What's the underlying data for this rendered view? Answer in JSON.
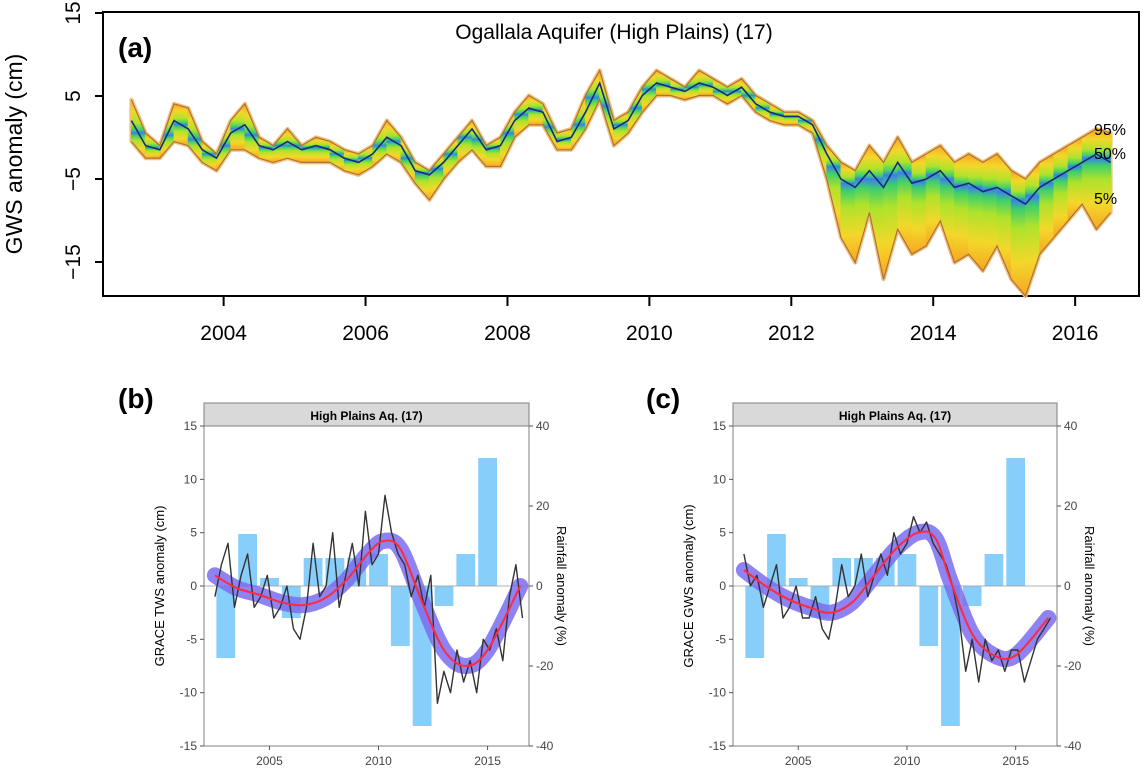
{
  "chart_data": [
    {
      "panel_label": "(a)",
      "type": "area",
      "title": "Ogallala Aquifer (High Plains) (17)",
      "ylabel": "GWS anomaly (cm)",
      "xlabel": "",
      "xlim": [
        2002.3,
        2016.9
      ],
      "ylim": [
        -19,
        15
      ],
      "xticks": [
        2004,
        2006,
        2008,
        2010,
        2012,
        2014,
        2016
      ],
      "xtick_labels": [
        "2004",
        "2006",
        "2008",
        "2010",
        "2012",
        "2014",
        "2016"
      ],
      "yticks": [
        15,
        5,
        -5,
        -15
      ],
      "ytick_labels": [
        "15",
        "5",
        "−5",
        "−15"
      ],
      "percentile_labels": [
        "95%",
        "50%",
        "5%"
      ],
      "x": [
        2002.7,
        2002.9,
        2003.1,
        2003.3,
        2003.5,
        2003.7,
        2003.9,
        2004.1,
        2004.3,
        2004.5,
        2004.7,
        2004.9,
        2005.1,
        2005.3,
        2005.5,
        2005.7,
        2005.9,
        2006.1,
        2006.3,
        2006.5,
        2006.7,
        2006.9,
        2007.1,
        2007.3,
        2007.5,
        2007.7,
        2007.9,
        2008.1,
        2008.3,
        2008.5,
        2008.7,
        2008.9,
        2009.1,
        2009.3,
        2009.5,
        2009.7,
        2009.9,
        2010.1,
        2010.3,
        2010.5,
        2010.7,
        2010.9,
        2011.1,
        2011.3,
        2011.5,
        2011.7,
        2011.9,
        2012.1,
        2012.3,
        2012.5,
        2012.7,
        2012.9,
        2013.1,
        2013.3,
        2013.5,
        2013.7,
        2013.9,
        2014.1,
        2014.3,
        2014.5,
        2014.7,
        2014.9,
        2015.1,
        2015.3,
        2015.5,
        2015.7,
        2015.9,
        2016.1,
        2016.3,
        2016.5
      ],
      "series": [
        {
          "name": "95%",
          "values": [
            4.5,
            0.5,
            -1,
            4,
            3.5,
            -0.5,
            -2,
            2,
            4,
            0,
            -1,
            1,
            -1,
            0,
            -0.5,
            -1.5,
            -2,
            -1,
            2,
            0,
            -3,
            -4,
            -2,
            0,
            2,
            -1,
            0,
            3,
            5,
            4,
            0.5,
            1,
            5,
            8,
            2,
            3,
            6,
            8,
            7,
            6,
            8,
            7,
            6,
            7,
            5,
            4,
            3,
            3,
            2,
            -1,
            -3,
            -4,
            -1,
            -3,
            0,
            -3,
            -2,
            -1,
            -3,
            -2,
            -3,
            -2,
            -4,
            -5,
            -3,
            -2,
            -1,
            0,
            1,
            0.5
          ]
        },
        {
          "name": "50%",
          "values": [
            2,
            -1,
            -1.5,
            2,
            1,
            -1.5,
            -2.5,
            0.5,
            1.5,
            -1,
            -1.5,
            -0.5,
            -1.5,
            -1,
            -1.5,
            -2.5,
            -3,
            -2,
            0,
            -1,
            -4,
            -4.5,
            -3,
            -1,
            1,
            -1.5,
            -1,
            2,
            3.5,
            3,
            -0.5,
            0,
            3,
            6.5,
            1,
            2,
            5,
            6.5,
            6,
            5.5,
            6.5,
            6,
            5,
            6,
            4,
            3,
            2.5,
            2.5,
            1.5,
            -2,
            -5,
            -6,
            -4,
            -6,
            -3,
            -5.5,
            -5,
            -4,
            -6,
            -5.5,
            -6.5,
            -6,
            -7,
            -8,
            -6,
            -5,
            -4,
            -3,
            -2,
            -3
          ]
        },
        {
          "name": "5%",
          "values": [
            -0.5,
            -2.5,
            -2.5,
            -0.5,
            -1,
            -3,
            -4,
            -1.5,
            -1.5,
            -2.5,
            -3,
            -2.5,
            -3,
            -3,
            -3,
            -4,
            -4.5,
            -3.5,
            -2,
            -3,
            -5.5,
            -7.5,
            -5,
            -3,
            -1.5,
            -3.5,
            -3.5,
            0,
            1.5,
            1.5,
            -1.5,
            -1.5,
            1,
            4.5,
            -1,
            0.5,
            3,
            5,
            5,
            4.5,
            5,
            5,
            4,
            5,
            3,
            2,
            1.5,
            1.5,
            0.5,
            -5,
            -12,
            -15,
            -9,
            -17,
            -11,
            -14,
            -13,
            -10,
            -15,
            -14,
            -16,
            -13,
            -17,
            -19,
            -14,
            -12,
            -10,
            -8,
            -11,
            -9
          ]
        }
      ]
    },
    {
      "panel_label": "(b)",
      "type": "line",
      "strip_title": "High Plains Aq. (17)",
      "ylabel": "GRACE TWS anomaly (cm)",
      "y2label": "Rainfall anomaly (%)",
      "xlim": [
        2002.0,
        2016.9
      ],
      "ylim": [
        -15,
        15
      ],
      "y2lim": [
        -40,
        40
      ],
      "xticks": [
        2005,
        2010,
        2015
      ],
      "xtick_labels": [
        "2005",
        "2010",
        "2015"
      ],
      "yticks": [
        -15,
        -10,
        -5,
        0,
        5,
        10,
        15
      ],
      "ytick_labels": [
        "-15",
        "-10",
        "-5",
        "0",
        "5",
        "10",
        "15"
      ],
      "y2ticks": [
        -40,
        -20,
        0,
        20,
        40
      ],
      "y2tick_labels": [
        "-40",
        "-20",
        "0",
        "20",
        "40"
      ],
      "rainfall_bars": {
        "years": [
          2003,
          2004,
          2005,
          2006,
          2007,
          2008,
          2009,
          2010,
          2011,
          2012,
          2013,
          2014,
          2015
        ],
        "values": [
          -18,
          13,
          2,
          -8,
          7,
          7,
          7,
          8,
          -15,
          -35,
          -5,
          8,
          32
        ]
      },
      "trend": {
        "name": "smoothed trend",
        "x": [
          2002.5,
          2003.5,
          2004.5,
          2005.5,
          2006.5,
          2007.5,
          2008.5,
          2009.5,
          2010.2,
          2011,
          2012,
          2013,
          2014,
          2015,
          2016.5
        ],
        "values": [
          1,
          -0.2,
          -0.8,
          -1.5,
          -1.8,
          -1.2,
          0.5,
          3,
          4.2,
          3.5,
          -1.5,
          -6,
          -7.5,
          -6,
          0
        ]
      },
      "observed": {
        "name": "GRACE TWS",
        "x": [
          2002.5,
          2002.8,
          2003.1,
          2003.4,
          2003.7,
          2004,
          2004.3,
          2004.6,
          2004.9,
          2005.2,
          2005.5,
          2005.8,
          2006.1,
          2006.4,
          2006.7,
          2007,
          2007.3,
          2007.6,
          2007.9,
          2008.2,
          2008.5,
          2008.8,
          2009.1,
          2009.4,
          2009.7,
          2010,
          2010.3,
          2010.6,
          2010.9,
          2011.2,
          2011.5,
          2011.8,
          2012.1,
          2012.4,
          2012.7,
          2013,
          2013.3,
          2013.6,
          2013.9,
          2014.2,
          2014.5,
          2014.8,
          2015.1,
          2015.4,
          2015.7,
          2016,
          2016.3,
          2016.6
        ],
        "values": [
          -1,
          2,
          4,
          -2,
          1,
          3,
          -2,
          -1,
          1,
          -3,
          -2,
          0,
          -4,
          -5,
          -2,
          4,
          -1,
          0,
          5,
          -2,
          1,
          4,
          0,
          7,
          2,
          3,
          8.5,
          5,
          3,
          2,
          -1,
          1,
          -2,
          1,
          -11,
          -8,
          -10,
          -6,
          -9,
          -7,
          -10,
          -5,
          -6,
          -4,
          -7,
          -1,
          2,
          -3
        ]
      }
    },
    {
      "panel_label": "(c)",
      "type": "line",
      "strip_title": "High Plains Aq. (17)",
      "ylabel": "GRACE GWS anomaly (cm)",
      "y2label": "Rainfall anomaly (%)",
      "xlim": [
        2002.0,
        2016.9
      ],
      "ylim": [
        -15,
        15
      ],
      "y2lim": [
        -40,
        40
      ],
      "xticks": [
        2005,
        2010,
        2015
      ],
      "xtick_labels": [
        "2005",
        "2010",
        "2015"
      ],
      "yticks": [
        -15,
        -10,
        -5,
        0,
        5,
        10,
        15
      ],
      "ytick_labels": [
        "-15",
        "-10",
        "-5",
        "0",
        "5",
        "10",
        "15"
      ],
      "y2ticks": [
        -40,
        -20,
        0,
        20,
        40
      ],
      "y2tick_labels": [
        "-40",
        "-20",
        "0",
        "20",
        "40"
      ],
      "rainfall_bars": {
        "years": [
          2003,
          2004,
          2005,
          2006,
          2007,
          2008,
          2009,
          2010,
          2011,
          2012,
          2013,
          2014,
          2015
        ],
        "values": [
          -18,
          13,
          2,
          -8,
          7,
          7,
          7,
          8,
          -15,
          -35,
          -5,
          8,
          32
        ]
      },
      "trend": {
        "name": "smoothed trend",
        "x": [
          2002.5,
          2003.5,
          2004.5,
          2005.5,
          2006.5,
          2007.5,
          2008.5,
          2009.5,
          2010.5,
          2011.3,
          2012,
          2013,
          2014,
          2015,
          2016.5
        ],
        "values": [
          1.5,
          0,
          -1.2,
          -2,
          -2.5,
          -1.5,
          1,
          3.5,
          5,
          4.5,
          0.5,
          -4.5,
          -6.5,
          -6.5,
          -3
        ]
      },
      "observed": {
        "name": "GRACE GWS",
        "x": [
          2002.5,
          2002.8,
          2003.1,
          2003.4,
          2003.7,
          2004,
          2004.3,
          2004.6,
          2004.9,
          2005.2,
          2005.5,
          2005.8,
          2006.1,
          2006.4,
          2006.7,
          2007,
          2007.3,
          2007.6,
          2007.9,
          2008.2,
          2008.5,
          2008.8,
          2009.1,
          2009.4,
          2009.7,
          2010,
          2010.3,
          2010.6,
          2010.9,
          2011.2,
          2011.5,
          2011.8,
          2012.1,
          2012.4,
          2012.7,
          2013,
          2013.3,
          2013.6,
          2013.9,
          2014.2,
          2014.5,
          2014.8,
          2015.1,
          2015.4,
          2015.7,
          2016,
          2016.3,
          2016.6
        ],
        "values": [
          3,
          0,
          1,
          -2,
          0,
          2,
          -3,
          -2,
          0,
          -3,
          -3,
          -1,
          -4,
          -5,
          -2,
          2,
          -1,
          0,
          3,
          -1,
          1,
          3,
          1,
          5,
          3,
          4,
          6.5,
          5,
          6,
          4,
          3,
          2,
          0,
          -3,
          -8,
          -5,
          -9,
          -5,
          -7,
          -6,
          -8,
          -6,
          -6,
          -9,
          -7,
          -5,
          -4,
          -3
        ]
      }
    }
  ]
}
